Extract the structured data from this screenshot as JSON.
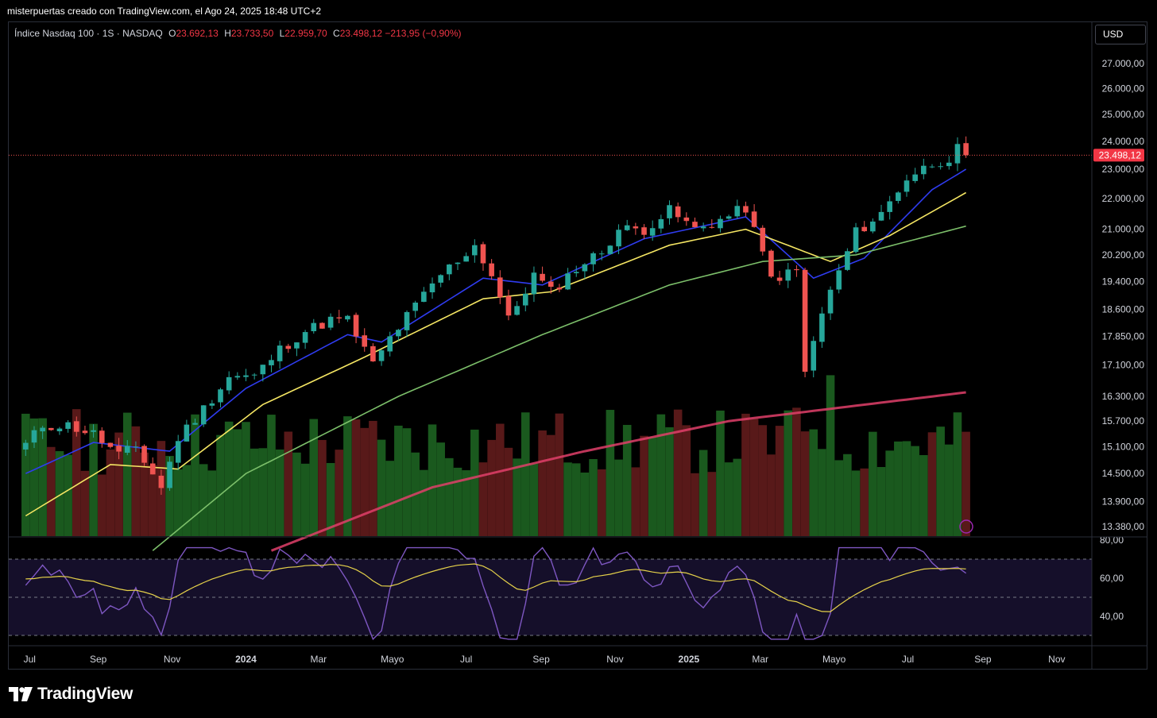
{
  "caption": "misterpuertas creado con TradingView.com, el Ago 24, 2025 18:48 UTC+2",
  "legend": {
    "symbol": "Índice Nasdaq 100 · 1S · NASDAQ",
    "o_label": "O",
    "o_value": "23.692,13",
    "h_label": "H",
    "h_value": "23.733,50",
    "l_label": "L",
    "l_value": "22.959,70",
    "c_label": "C",
    "c_value": "23.498,12",
    "change": "−213,95 (−0,90%)"
  },
  "currency": "USD",
  "last_price_label": "23.498,12",
  "brand": "TradingView",
  "colors": {
    "up": "#26a69a",
    "down": "#ef5350",
    "vol_up": "#1b5e20",
    "vol_down": "#5d1a1a",
    "ma_fast": "#2f3cf0",
    "ma_mid": "#f5e663",
    "ma_slow": "#7cbf6a",
    "ma_long": "#e0406a",
    "rsi": "#7e57c2",
    "rsi_ma": "#e6d24a"
  },
  "chart_data": {
    "type": "candlestick",
    "interval": "1W",
    "price_axis_ticks": [
      27000,
      26000,
      25000,
      24000,
      23000,
      22000,
      21000,
      20200,
      19400,
      18600,
      17850,
      17100,
      16300,
      15700,
      15100,
      14500,
      13900,
      13380
    ],
    "price_axis_labels": [
      "27.000,00",
      "26.000,00",
      "25.000,00",
      "24.000,00",
      "23.000,00",
      "22.000,00",
      "21.000,00",
      "20.200,00",
      "19.400,00",
      "18.600,00",
      "17.850,00",
      "17.100,00",
      "16.300,00",
      "15.700,00",
      "15.100,00",
      "14.500,00",
      "13.900,00",
      "13.380,00"
    ],
    "log_scale": true,
    "time_axis_labels": [
      "Jul",
      "Sep",
      "Nov",
      "2024",
      "Mar",
      "Mayo",
      "Jul",
      "Sep",
      "Nov",
      "2025",
      "Mar",
      "Mayo",
      "Jul",
      "Sep",
      "Nov"
    ],
    "series": [
      {
        "name": "price",
        "anchors": [
          [
            "2023-07-03",
            15150
          ],
          [
            "2023-07-17",
            15600
          ],
          [
            "2023-08-07",
            15600
          ],
          [
            "2023-08-28",
            15400
          ],
          [
            "2023-09-18",
            14900
          ],
          [
            "2023-10-02",
            15100
          ],
          [
            "2023-10-23",
            14200
          ],
          [
            "2023-11-06",
            15300
          ],
          [
            "2023-11-27",
            16000
          ],
          [
            "2023-12-18",
            16800
          ],
          [
            "2024-01-08",
            16800
          ],
          [
            "2024-01-29",
            17500
          ],
          [
            "2024-02-19",
            18000
          ],
          [
            "2024-03-11",
            18300
          ],
          [
            "2024-03-25",
            18300
          ],
          [
            "2024-04-15",
            17100
          ],
          [
            "2024-04-29",
            17800
          ],
          [
            "2024-05-20",
            18700
          ],
          [
            "2024-06-10",
            19600
          ],
          [
            "2024-07-08",
            20500
          ],
          [
            "2024-07-22",
            19600
          ],
          [
            "2024-08-05",
            18300
          ],
          [
            "2024-08-26",
            19600
          ],
          [
            "2024-09-09",
            19100
          ],
          [
            "2024-09-30",
            19800
          ],
          [
            "2024-10-21",
            20300
          ],
          [
            "2024-11-04",
            21000
          ],
          [
            "2024-11-25",
            21000
          ],
          [
            "2024-12-16",
            21600
          ],
          [
            "2025-01-06",
            21000
          ],
          [
            "2025-01-27",
            21300
          ],
          [
            "2025-02-17",
            21700
          ],
          [
            "2025-03-10",
            19500
          ],
          [
            "2025-03-31",
            19700
          ],
          [
            "2025-04-07",
            16900
          ],
          [
            "2025-04-21",
            18500
          ],
          [
            "2025-05-05",
            19700
          ],
          [
            "2025-05-19",
            20900
          ],
          [
            "2025-06-09",
            21500
          ],
          [
            "2025-06-30",
            22700
          ],
          [
            "2025-07-21",
            23200
          ],
          [
            "2025-08-04",
            23400
          ],
          [
            "2025-08-11",
            23700
          ],
          [
            "2025-08-18",
            23498
          ]
        ]
      },
      {
        "name": "ma_fast",
        "anchors": [
          [
            "2023-07-03",
            14500
          ],
          [
            "2023-08-28",
            15200
          ],
          [
            "2023-10-30",
            15000
          ],
          [
            "2024-01-01",
            16500
          ],
          [
            "2024-03-25",
            17900
          ],
          [
            "2024-04-22",
            17700
          ],
          [
            "2024-07-15",
            19500
          ],
          [
            "2024-09-02",
            19300
          ],
          [
            "2024-11-25",
            20700
          ],
          [
            "2025-02-17",
            21400
          ],
          [
            "2025-04-14",
            19500
          ],
          [
            "2025-05-26",
            20100
          ],
          [
            "2025-07-21",
            22300
          ],
          [
            "2025-08-18",
            23000
          ]
        ]
      },
      {
        "name": "ma_mid",
        "anchors": [
          [
            "2023-07-03",
            13600
          ],
          [
            "2023-09-11",
            14700
          ],
          [
            "2023-11-06",
            14600
          ],
          [
            "2024-01-15",
            16100
          ],
          [
            "2024-04-08",
            17300
          ],
          [
            "2024-07-15",
            18900
          ],
          [
            "2024-09-09",
            19100
          ],
          [
            "2024-12-16",
            20500
          ],
          [
            "2025-02-17",
            21000
          ],
          [
            "2025-04-28",
            20000
          ],
          [
            "2025-06-16",
            20800
          ],
          [
            "2025-08-18",
            22200
          ]
        ]
      },
      {
        "name": "ma_slow",
        "anchors": [
          [
            "2023-10-16",
            12900
          ],
          [
            "2024-01-01",
            14500
          ],
          [
            "2024-05-06",
            16300
          ],
          [
            "2024-09-02",
            17900
          ],
          [
            "2024-12-16",
            19300
          ],
          [
            "2025-03-03",
            20000
          ],
          [
            "2025-05-19",
            20200
          ],
          [
            "2025-08-18",
            21100
          ]
        ]
      },
      {
        "name": "ma_long",
        "anchors": [
          [
            "2024-01-22",
            12900
          ],
          [
            "2024-06-03",
            14200
          ],
          [
            "2024-10-07",
            15000
          ],
          [
            "2025-02-03",
            15700
          ],
          [
            "2025-08-18",
            16400
          ]
        ]
      }
    ],
    "rsi": {
      "ticks": [
        80,
        60,
        40
      ],
      "tick_labels": [
        "80,00",
        "60,00",
        "40,00"
      ],
      "levels": [
        70,
        50,
        30
      ]
    }
  }
}
